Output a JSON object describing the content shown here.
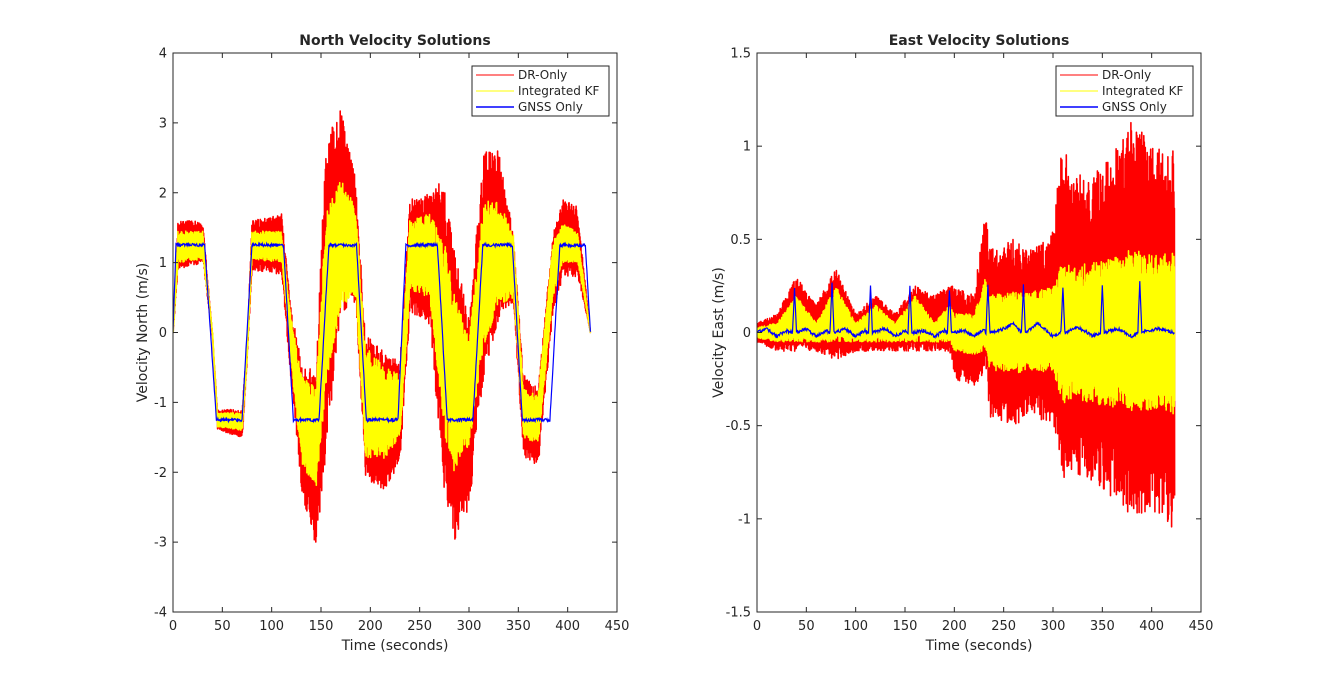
{
  "colors": {
    "dr_only": "#ff0000",
    "integrated_kf": "#ffff00",
    "gnss_only": "#0000ff",
    "axes": "#262626",
    "background": "#ffffff"
  },
  "chart_data": [
    {
      "type": "line",
      "title": "North Velocity Solutions",
      "xlabel": "Time (seconds)",
      "ylabel": "Velocity North (m/s)",
      "xlim": [
        0,
        450
      ],
      "ylim": [
        -4,
        4
      ],
      "xticks": [
        0,
        50,
        100,
        150,
        200,
        250,
        300,
        350,
        400,
        450
      ],
      "yticks": [
        -4,
        -3,
        -2,
        -1,
        0,
        1,
        2,
        3,
        4
      ],
      "xtick_labels": [
        "0",
        "50",
        "100",
        "150",
        "200",
        "250",
        "300",
        "350",
        "400",
        "450"
      ],
      "ytick_labels": [
        "-4",
        "-3",
        "-2",
        "-1",
        "0",
        "1",
        "2",
        "3",
        "4"
      ],
      "grid": false,
      "legend_position": "top-right",
      "series": [
        {
          "name": "DR-Only",
          "color": "#ff0000",
          "style": "band",
          "x": [
            0,
            5,
            30,
            40,
            45,
            70,
            75,
            80,
            110,
            120,
            130,
            145,
            155,
            170,
            185,
            195,
            215,
            230,
            240,
            260,
            275,
            285,
            300,
            315,
            330,
            345,
            355,
            370,
            385,
            395,
            410,
            423
          ],
          "upper": [
            0,
            1.6,
            1.6,
            0.0,
            -1.1,
            -1.1,
            -0.2,
            1.6,
            1.7,
            0.3,
            -0.4,
            -0.6,
            2.8,
            3.2,
            2.2,
            0.0,
            -0.3,
            -0.4,
            1.9,
            2.0,
            2.2,
            1.2,
            0.2,
            2.6,
            2.6,
            1.4,
            -0.6,
            -0.8,
            1.4,
            1.9,
            1.8,
            0
          ],
          "lower": [
            0,
            0.9,
            1.0,
            -0.1,
            -1.4,
            -1.5,
            -0.4,
            0.9,
            0.8,
            -0.8,
            -2.3,
            -3.1,
            -1.7,
            0.3,
            0.4,
            -2.1,
            -2.3,
            -1.8,
            0.3,
            0.1,
            -2.3,
            -3.0,
            -2.5,
            -0.6,
            0.2,
            0.4,
            -1.8,
            -1.9,
            0.3,
            0.8,
            0.8,
            0
          ]
        },
        {
          "name": "Integrated KF",
          "color": "#ffff00",
          "style": "band",
          "x": [
            0,
            5,
            30,
            40,
            45,
            70,
            75,
            80,
            110,
            120,
            130,
            145,
            155,
            170,
            185,
            195,
            215,
            230,
            240,
            260,
            275,
            285,
            300,
            315,
            330,
            345,
            355,
            370,
            385,
            395,
            410,
            423
          ],
          "upper": [
            0,
            1.45,
            1.45,
            0.0,
            -1.15,
            -1.15,
            -0.25,
            1.45,
            1.45,
            0.2,
            -0.6,
            -0.8,
            1.7,
            2.2,
            1.8,
            -0.2,
            -0.5,
            -0.6,
            1.6,
            1.7,
            1.3,
            0.6,
            -0.1,
            1.9,
            1.9,
            1.4,
            -0.8,
            -0.9,
            1.3,
            1.55,
            1.45,
            0
          ],
          "lower": [
            0,
            1.0,
            1.05,
            -0.05,
            -1.35,
            -1.4,
            -0.35,
            1.05,
            1.0,
            -0.5,
            -1.9,
            -2.2,
            -0.8,
            0.4,
            0.5,
            -1.8,
            -1.8,
            -1.5,
            0.6,
            0.5,
            -1.5,
            -2.0,
            -1.6,
            -0.2,
            0.4,
            0.5,
            -1.5,
            -1.6,
            0.5,
            1.0,
            1.0,
            0
          ]
        },
        {
          "name": "GNSS Only",
          "color": "#0000ff",
          "style": "line",
          "x": [
            0,
            3,
            32,
            38,
            44,
            70,
            80,
            112,
            122,
            148,
            158,
            186,
            196,
            228,
            236,
            268,
            278,
            304,
            314,
            344,
            354,
            382,
            392,
            418,
            423
          ],
          "y": [
            0,
            1.25,
            1.25,
            0.0,
            -1.25,
            -1.25,
            1.25,
            1.25,
            -1.25,
            -1.25,
            1.25,
            1.25,
            -1.25,
            -1.25,
            1.25,
            1.25,
            -1.25,
            -1.25,
            1.25,
            1.25,
            -1.25,
            -1.25,
            1.25,
            1.25,
            0
          ]
        }
      ]
    },
    {
      "type": "line",
      "title": "East Velocity Solutions",
      "xlabel": "Time (seconds)",
      "ylabel": "Velocity East (m/s)",
      "xlim": [
        0,
        450
      ],
      "ylim": [
        -1.5,
        1.5
      ],
      "xticks": [
        0,
        50,
        100,
        150,
        200,
        250,
        300,
        350,
        400,
        450
      ],
      "yticks": [
        -1.5,
        -1,
        -0.5,
        0,
        0.5,
        1,
        1.5
      ],
      "xtick_labels": [
        "0",
        "50",
        "100",
        "150",
        "200",
        "250",
        "300",
        "350",
        "400",
        "450"
      ],
      "ytick_labels": [
        "-1.5",
        "-1",
        "-0.5",
        "0",
        "0.5",
        "1",
        "1.5"
      ],
      "grid": false,
      "legend_position": "top-right",
      "series": [
        {
          "name": "DR-Only",
          "color": "#ff0000",
          "style": "band",
          "x": [
            0,
            20,
            40,
            60,
            80,
            100,
            120,
            140,
            160,
            180,
            195,
            200,
            220,
            232,
            235,
            260,
            280,
            300,
            310,
            320,
            340,
            360,
            380,
            400,
            423
          ],
          "upper": [
            0.05,
            0.1,
            0.3,
            0.15,
            0.35,
            0.1,
            0.2,
            0.1,
            0.25,
            0.2,
            0.25,
            0.25,
            0.2,
            0.7,
            0.45,
            0.5,
            0.45,
            0.55,
            1.05,
            0.85,
            0.85,
            0.95,
            1.15,
            1.0,
            1.0
          ],
          "lower": [
            -0.05,
            -0.1,
            -0.1,
            -0.1,
            -0.15,
            -0.1,
            -0.1,
            -0.1,
            -0.1,
            -0.1,
            -0.1,
            -0.25,
            -0.3,
            -0.2,
            -0.45,
            -0.5,
            -0.45,
            -0.5,
            -0.8,
            -0.75,
            -0.8,
            -0.9,
            -1.0,
            -0.95,
            -1.1
          ]
        },
        {
          "name": "Integrated KF",
          "color": "#ffff00",
          "style": "band",
          "x": [
            0,
            20,
            40,
            60,
            80,
            100,
            120,
            140,
            160,
            180,
            195,
            200,
            220,
            232,
            235,
            260,
            280,
            300,
            310,
            320,
            340,
            360,
            380,
            400,
            423
          ],
          "upper": [
            0.03,
            0.05,
            0.2,
            0.05,
            0.25,
            0.05,
            0.15,
            0.05,
            0.2,
            0.05,
            0.15,
            0.1,
            0.1,
            0.3,
            0.2,
            0.22,
            0.22,
            0.25,
            0.4,
            0.35,
            0.38,
            0.4,
            0.45,
            0.42,
            0.44
          ],
          "lower": [
            -0.03,
            -0.05,
            -0.05,
            -0.05,
            -0.05,
            -0.05,
            -0.05,
            -0.05,
            -0.05,
            -0.05,
            -0.05,
            -0.1,
            -0.12,
            -0.1,
            -0.2,
            -0.22,
            -0.2,
            -0.22,
            -0.4,
            -0.35,
            -0.38,
            -0.4,
            -0.42,
            -0.42,
            -0.44
          ]
        },
        {
          "name": "GNSS Only",
          "color": "#0000ff",
          "style": "line",
          "x": [
            0,
            10,
            20,
            30,
            36,
            38,
            40,
            50,
            60,
            70,
            74,
            76,
            78,
            90,
            100,
            110,
            113,
            115,
            117,
            130,
            140,
            150,
            153,
            155,
            157,
            170,
            180,
            190,
            193,
            195,
            197,
            210,
            220,
            230,
            232,
            234,
            236,
            250,
            260,
            268,
            270,
            272,
            285,
            300,
            308,
            310,
            312,
            325,
            340,
            348,
            350,
            352,
            365,
            380,
            386,
            388,
            390,
            405,
            423
          ],
          "y": [
            0.0,
            0.02,
            -0.02,
            0.01,
            0.0,
            0.23,
            0.0,
            0.02,
            -0.02,
            0.01,
            0.0,
            0.27,
            0.0,
            0.02,
            -0.02,
            0.01,
            0.0,
            0.25,
            0.0,
            0.02,
            -0.02,
            0.01,
            0.0,
            0.25,
            0.0,
            0.01,
            -0.02,
            0.01,
            0.0,
            0.23,
            0.0,
            0.01,
            -0.02,
            0.02,
            0.0,
            0.25,
            0.0,
            0.02,
            0.05,
            0.0,
            0.25,
            0.0,
            0.05,
            -0.02,
            0.0,
            0.24,
            0.0,
            0.03,
            -0.02,
            0.0,
            0.25,
            0.0,
            0.02,
            -0.02,
            0.0,
            0.27,
            0.0,
            0.02,
            0.0
          ]
        }
      ]
    }
  ]
}
